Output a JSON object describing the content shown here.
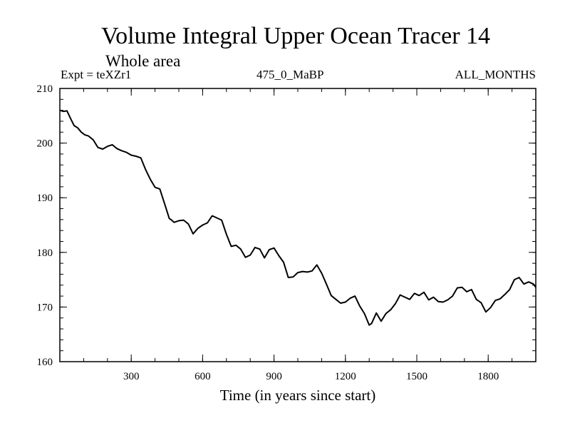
{
  "chart_data": {
    "type": "line",
    "title": "Volume Integral Upper Ocean Tracer 14",
    "subtitle": "Whole area",
    "expt_label": "Expt = teXZr1",
    "center_label": "475_0_MaBP",
    "right_label": "ALL_MONTHS",
    "xlabel": "Time (in years since start)",
    "ylabel": "",
    "xlim": [
      0,
      2000
    ],
    "ylim": [
      160,
      210
    ],
    "xticks": [
      300,
      600,
      900,
      1200,
      1500,
      1800
    ],
    "yticks": [
      160,
      170,
      180,
      190,
      200,
      210
    ],
    "x_minor_step": 100,
    "y_minor_step": 2,
    "line_color": "#000000",
    "series": [
      {
        "name": "Tracer 14",
        "x": [
          0,
          15,
          30,
          45,
          60,
          75,
          90,
          105,
          120,
          140,
          160,
          180,
          200,
          220,
          240,
          260,
          280,
          300,
          320,
          340,
          360,
          380,
          400,
          420,
          440,
          460,
          470,
          480,
          500,
          520,
          540,
          560,
          580,
          600,
          620,
          640,
          660,
          680,
          700,
          720,
          740,
          760,
          780,
          800,
          820,
          840,
          860,
          880,
          900,
          920,
          940,
          960,
          980,
          1000,
          1020,
          1040,
          1060,
          1080,
          1100,
          1120,
          1140,
          1160,
          1180,
          1200,
          1220,
          1240,
          1260,
          1280,
          1300,
          1310,
          1330,
          1350,
          1370,
          1390,
          1410,
          1430,
          1450,
          1470,
          1490,
          1510,
          1530,
          1550,
          1570,
          1590,
          1610,
          1630,
          1650,
          1670,
          1690,
          1710,
          1730,
          1750,
          1770,
          1790,
          1810,
          1830,
          1850,
          1870,
          1890,
          1910,
          1930,
          1950,
          1970,
          1990,
          2000
        ],
        "values": [
          206.0,
          205.8,
          205.9,
          204.5,
          203.2,
          202.8,
          202.0,
          201.5,
          201.3,
          200.6,
          199.2,
          198.9,
          199.4,
          199.7,
          199.0,
          198.6,
          198.3,
          197.8,
          197.6,
          197.3,
          195.2,
          193.4,
          191.9,
          191.6,
          188.9,
          186.2,
          185.9,
          185.5,
          185.8,
          185.9,
          185.2,
          183.4,
          184.4,
          185.0,
          185.4,
          186.7,
          186.3,
          185.9,
          183.3,
          181.1,
          181.3,
          180.6,
          179.1,
          179.5,
          180.9,
          180.6,
          179.0,
          180.5,
          180.8,
          179.4,
          178.2,
          175.4,
          175.5,
          176.3,
          176.5,
          176.4,
          176.6,
          177.7,
          176.2,
          174.2,
          172.1,
          171.4,
          170.7,
          170.9,
          171.6,
          172.0,
          170.2,
          168.8,
          166.7,
          167.0,
          168.9,
          167.4,
          168.8,
          169.5,
          170.6,
          172.2,
          171.8,
          171.4,
          172.5,
          172.1,
          172.7,
          171.3,
          171.8,
          171.0,
          170.9,
          171.3,
          172.0,
          173.5,
          173.6,
          172.8,
          173.2,
          171.4,
          170.8,
          169.1,
          169.9,
          171.2,
          171.5,
          172.3,
          173.2,
          175.0,
          175.4,
          174.2,
          174.6,
          174.2,
          173.6
        ]
      }
    ]
  }
}
